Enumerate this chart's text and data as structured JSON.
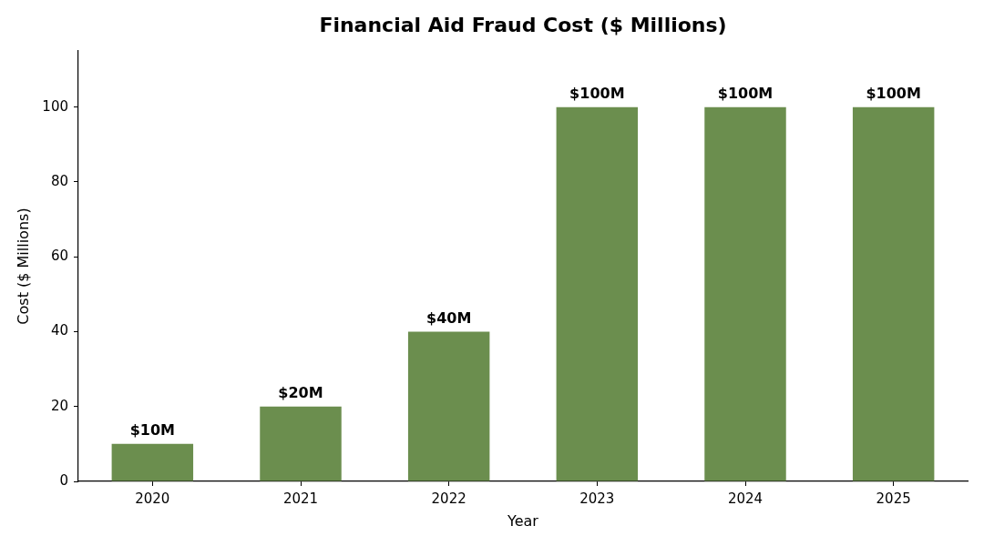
{
  "chart_data": {
    "type": "bar",
    "title": "Financial Aid Fraud Cost ($ Millions)",
    "xlabel": "Year",
    "ylabel": "Cost ($ Millions)",
    "categories": [
      "2020",
      "2021",
      "2022",
      "2023",
      "2024",
      "2025"
    ],
    "values": [
      10,
      20,
      40,
      100,
      100,
      100
    ],
    "color": "#6b8e4e",
    "value_labels": [
      "$10M",
      "$20M",
      "$40M",
      "$100M",
      "$100M",
      "$100M"
    ],
    "ylim": [
      0,
      115
    ],
    "yticks": [
      0,
      20,
      40,
      60,
      80,
      100
    ]
  }
}
